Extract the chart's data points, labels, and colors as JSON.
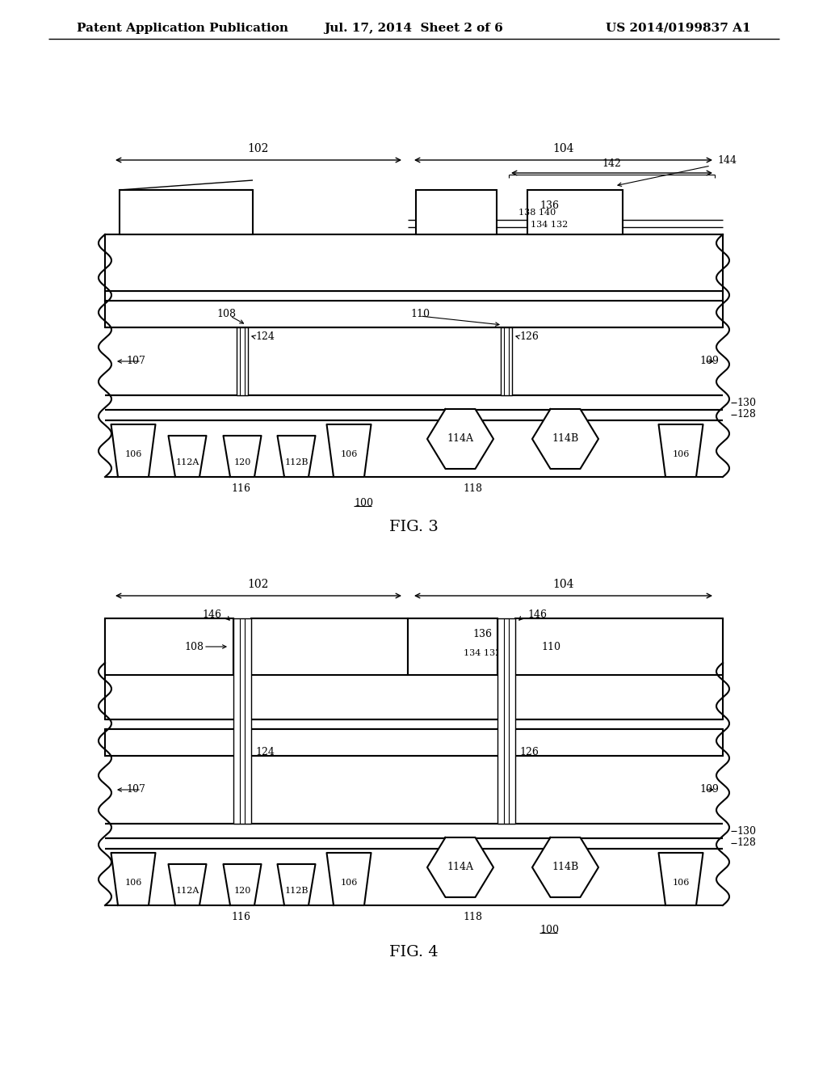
{
  "header_left": "Patent Application Publication",
  "header_center": "Jul. 17, 2014  Sheet 2 of 6",
  "header_right": "US 2014/0199837 A1",
  "fig3_title": "FIG. 3",
  "fig4_title": "FIG. 4"
}
